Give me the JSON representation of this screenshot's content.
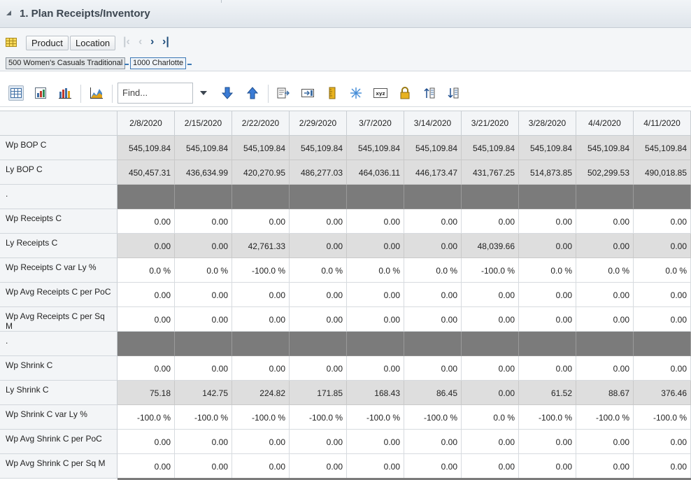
{
  "panel": {
    "title": "1. Plan Receipts/Inventory"
  },
  "dimensions": {
    "product_label": "Product",
    "location_label": "Location",
    "product_crumb": "500 Women's Casuals Traditional",
    "location_crumb": "1000 Charlotte"
  },
  "toolbar": {
    "find_placeholder": "Find..."
  },
  "grid": {
    "columns": [
      "2/8/2020",
      "2/15/2020",
      "2/22/2020",
      "2/29/2020",
      "3/7/2020",
      "3/14/2020",
      "3/21/2020",
      "3/28/2020",
      "4/4/2020",
      "4/11/2020"
    ],
    "rows": [
      {
        "label": "Wp BOP C",
        "style": "gray",
        "values": [
          "545,109.84",
          "545,109.84",
          "545,109.84",
          "545,109.84",
          "545,109.84",
          "545,109.84",
          "545,109.84",
          "545,109.84",
          "545,109.84",
          "545,109.84"
        ]
      },
      {
        "label": "Ly BOP C",
        "style": "gray",
        "values": [
          "450,457.31",
          "436,634.99",
          "420,270.95",
          "486,277.03",
          "464,036.11",
          "446,173.47",
          "431,767.25",
          "514,873.85",
          "502,299.53",
          "490,018.85"
        ]
      },
      {
        "label": ".",
        "style": "sepr",
        "values": [
          "",
          "",
          "",
          "",
          "",
          "",
          "",
          "",
          "",
          ""
        ]
      },
      {
        "label": "Wp Receipts C",
        "style": "white",
        "values": [
          "0.00",
          "0.00",
          "0.00",
          "0.00",
          "0.00",
          "0.00",
          "0.00",
          "0.00",
          "0.00",
          "0.00"
        ]
      },
      {
        "label": "Ly Receipts C",
        "style": "gray",
        "values": [
          "0.00",
          "0.00",
          "42,761.33",
          "0.00",
          "0.00",
          "0.00",
          "48,039.66",
          "0.00",
          "0.00",
          "0.00"
        ]
      },
      {
        "label": "Wp Receipts C var Ly %",
        "style": "white",
        "values": [
          "0.0 %",
          "0.0 %",
          "-100.0 %",
          "0.0 %",
          "0.0 %",
          "0.0 %",
          "-100.0 %",
          "0.0 %",
          "0.0 %",
          "0.0 %"
        ]
      },
      {
        "label": "Wp Avg Receipts C per PoC",
        "style": "white",
        "values": [
          "0.00",
          "0.00",
          "0.00",
          "0.00",
          "0.00",
          "0.00",
          "0.00",
          "0.00",
          "0.00",
          "0.00"
        ]
      },
      {
        "label": "Wp Avg Receipts C per Sq M",
        "style": "white",
        "values": [
          "0.00",
          "0.00",
          "0.00",
          "0.00",
          "0.00",
          "0.00",
          "0.00",
          "0.00",
          "0.00",
          "0.00"
        ]
      },
      {
        "label": ".",
        "style": "sepr",
        "values": [
          "",
          "",
          "",
          "",
          "",
          "",
          "",
          "",
          "",
          ""
        ]
      },
      {
        "label": "Wp Shrink C",
        "style": "white",
        "values": [
          "0.00",
          "0.00",
          "0.00",
          "0.00",
          "0.00",
          "0.00",
          "0.00",
          "0.00",
          "0.00",
          "0.00"
        ]
      },
      {
        "label": "Ly Shrink C",
        "style": "gray",
        "values": [
          "75.18",
          "142.75",
          "224.82",
          "171.85",
          "168.43",
          "86.45",
          "0.00",
          "61.52",
          "88.67",
          "376.46"
        ]
      },
      {
        "label": "Wp Shrink C var Ly %",
        "style": "white",
        "values": [
          "-100.0 %",
          "-100.0 %",
          "-100.0 %",
          "-100.0 %",
          "-100.0 %",
          "-100.0 %",
          "0.0 %",
          "-100.0 %",
          "-100.0 %",
          "-100.0 %"
        ]
      },
      {
        "label": "Wp Avg Shrink C per PoC",
        "style": "white",
        "values": [
          "0.00",
          "0.00",
          "0.00",
          "0.00",
          "0.00",
          "0.00",
          "0.00",
          "0.00",
          "0.00",
          "0.00"
        ]
      },
      {
        "label": "Wp Avg Shrink C per Sq M",
        "style": "white",
        "values": [
          "0.00",
          "0.00",
          "0.00",
          "0.00",
          "0.00",
          "0.00",
          "0.00",
          "0.00",
          "0.00",
          "0.00"
        ]
      }
    ]
  },
  "colors": {
    "header_bg": "#dfe5eb",
    "gray_row": "#dedede",
    "separator_row": "#7b7b7b",
    "accent": "#214f7d"
  }
}
